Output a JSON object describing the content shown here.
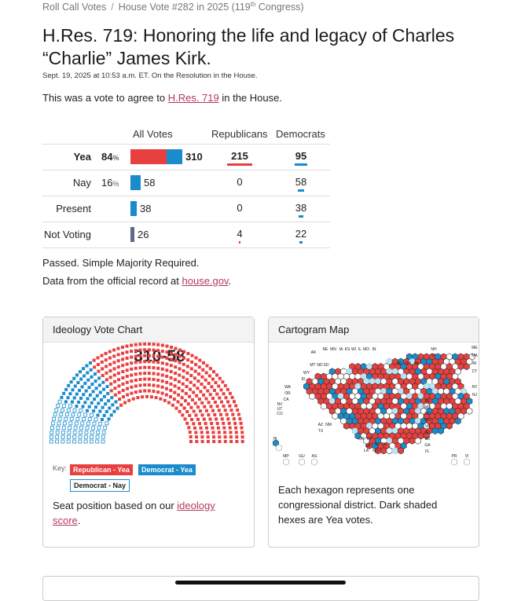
{
  "breadcrumb": {
    "home": "Roll Call Votes",
    "separator": "/",
    "current_prefix": "House Vote #282 in 2025 (119",
    "current_sup": "th",
    "current_suffix": " Congress)"
  },
  "title": "H.Res. 719: Honoring the life and legacy of Charles “Charlie” James Kirk.",
  "meta": "Sept. 19, 2025 at 10:53 a.m. ET. On the Resolution in the House.",
  "intro": {
    "before": "This was a vote to agree to ",
    "link": "H.Res. 719",
    "after": " in the House."
  },
  "vote_table": {
    "headers": {
      "all": "All Votes",
      "rep": "Republicans",
      "dem": "Democrats"
    },
    "rows": [
      {
        "label": "Yea",
        "pct": "84",
        "pct_sign": "%",
        "total": "310",
        "rep": "215",
        "dem": "95",
        "bold": true,
        "rep_share": 0.694,
        "dem_share": 0.306
      },
      {
        "label": "Nay",
        "pct": "16",
        "pct_sign": "%",
        "total": "58",
        "rep": "0",
        "dem": "58"
      },
      {
        "label": "Present",
        "pct": "",
        "pct_sign": "",
        "total": "38",
        "rep": "0",
        "dem": "38"
      },
      {
        "label": "Not Voting",
        "pct": "",
        "pct_sign": "",
        "total": "26",
        "rep": "4",
        "dem": "22"
      }
    ]
  },
  "result": "Passed. Simple Majority Required.",
  "source": {
    "before": "Data from the official record at ",
    "link": "house.gov",
    "after": "."
  },
  "ideology_card": {
    "title": "Ideology Vote Chart",
    "score": "310-58",
    "key_label": "Key:",
    "keys": [
      "Republican - Yea",
      "Democrat - Yea",
      "Democrat - Nay"
    ],
    "caption_before": "Seat position based on our ",
    "caption_link": "ideology score",
    "caption_after": "."
  },
  "cartogram_card": {
    "title": "Cartogram Map",
    "caption": "Each hexagon represents one congressional district. Dark shaded hexes are Yea votes.",
    "state_labels": [
      "AK",
      "NE",
      "MN",
      "IA",
      "KS",
      "WI",
      "IL",
      "MO",
      "IN",
      "MT",
      "ND",
      "SD",
      "MI",
      "OH",
      "PA",
      "WY",
      "ID",
      "WA",
      "OR",
      "CA",
      "NV",
      "UT",
      "CO",
      "AZ",
      "NM",
      "TX",
      "OK",
      "KY",
      "AR",
      "AL",
      "TN",
      "LA",
      "MS",
      "HI",
      "DE",
      "MD",
      "DC",
      "WV",
      "VA",
      "NC",
      "SC",
      "GA",
      "FL",
      "NH",
      "VT",
      "ME",
      "MA",
      "RI",
      "CT",
      "NY",
      "NJ",
      "MP",
      "GU",
      "AS",
      "PR",
      "VI"
    ]
  },
  "colors": {
    "rep": "#e8403f",
    "dem": "#1a8ccc",
    "present": "#1a8ccc",
    "notvoting": "#5a6b8c",
    "link": "#b23a5a"
  }
}
